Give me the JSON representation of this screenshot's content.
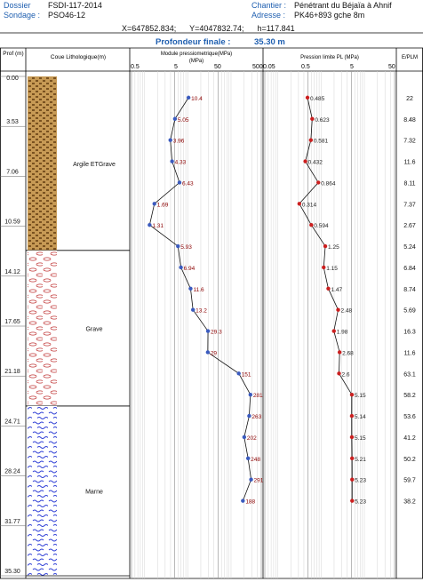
{
  "header": {
    "dossier_label": "Dossier",
    "dossier_value": "FSDI-117-2014",
    "sondage_label": "Sondage :",
    "sondage_value": "PSO46-12",
    "chantier_label": "Chantier :",
    "chantier_value": "Pénétrant  du Béjaïa à Ahnif",
    "adresse_label": "Adresse :",
    "adresse_value": "PK46+893 gche 8m",
    "coords": "X=647852.834;      Y=4047832.74;      h=117.841",
    "profondeur_label": "Profondeur finale :",
    "profondeur_value": "35.30 m"
  },
  "columns": {
    "depth": "Prof\n(m)",
    "litho": "Coue Lithologique(m)",
    "modulus": "Module pressiometrique(MPa)",
    "modulus_unit": "(MPa)",
    "pressure": "Pression limite PL (MPa)",
    "ratio": "E/PLM"
  },
  "axes": {
    "modulus_ticks": [
      "0.5",
      "5",
      "50",
      "500"
    ],
    "pressure_ticks": [
      "0.05",
      "0.5",
      "5",
      "50"
    ]
  },
  "depth_ticks": [
    "0.00",
    "3.53",
    "7.06",
    "10.59",
    "14.12",
    "17.65",
    "21.18",
    "24.71",
    "28.24",
    "31.77",
    "35.30"
  ],
  "layers": [
    {
      "name": "Argile ETGrave",
      "from": 0,
      "to": 12.3
    },
    {
      "name": "Grave",
      "from": 12.3,
      "to": 23.3
    },
    {
      "name": "Marne",
      "from": 23.3,
      "to": 35.3
    }
  ],
  "chart_data": {
    "type": "line",
    "depth_range": [
      0,
      35.3
    ],
    "modulus_axis": {
      "scale": "log",
      "range": [
        0.5,
        500
      ]
    },
    "pressure_axis": {
      "scale": "log",
      "range": [
        0.05,
        50
      ]
    },
    "series": [
      {
        "name": "Module pressiometrique(MPa)",
        "color": "#3b5bbf",
        "label_color": "#8b0000",
        "points": [
          {
            "depth": 1.5,
            "value": 10.4,
            "label": "10.4"
          },
          {
            "depth": 3.0,
            "value": 5.05,
            "label": "5.05"
          },
          {
            "depth": 4.5,
            "value": 3.96,
            "label": "3.96"
          },
          {
            "depth": 6.0,
            "value": 4.33,
            "label": "4.33"
          },
          {
            "depth": 7.5,
            "value": 6.43,
            "label": "6.43"
          },
          {
            "depth": 9.0,
            "value": 1.69,
            "label": "1.69"
          },
          {
            "depth": 10.5,
            "value": 1.31,
            "label": "1.31"
          },
          {
            "depth": 12.0,
            "value": 5.93,
            "label": "5.93"
          },
          {
            "depth": 13.5,
            "value": 6.94,
            "label": "6.94"
          },
          {
            "depth": 15.0,
            "value": 11.6,
            "label": "11.6"
          },
          {
            "depth": 16.5,
            "value": 13.2,
            "label": "13.2"
          },
          {
            "depth": 18.0,
            "value": 29.3,
            "label": "29.3"
          },
          {
            "depth": 19.5,
            "value": 29,
            "label": "29"
          },
          {
            "depth": 21.0,
            "value": 151,
            "label": "151"
          },
          {
            "depth": 22.5,
            "value": 281,
            "label": "281"
          },
          {
            "depth": 24.0,
            "value": 263,
            "label": "263"
          },
          {
            "depth": 25.5,
            "value": 202,
            "label": "202"
          },
          {
            "depth": 27.0,
            "value": 248,
            "label": "248"
          },
          {
            "depth": 28.5,
            "value": 291,
            "label": "291"
          },
          {
            "depth": 30.0,
            "value": 188,
            "label": "188"
          }
        ]
      },
      {
        "name": "Pression limite PL (MPa)",
        "color": "#cc1f1f",
        "label_color": "#222222",
        "points": [
          {
            "depth": 1.5,
            "value": 0.485,
            "label": "0.485"
          },
          {
            "depth": 3.0,
            "value": 0.623,
            "label": "0.623"
          },
          {
            "depth": 4.5,
            "value": 0.581,
            "label": "0.581"
          },
          {
            "depth": 6.0,
            "value": 0.432,
            "label": "0.432"
          },
          {
            "depth": 7.5,
            "value": 0.864,
            "label": "0.864"
          },
          {
            "depth": 9.0,
            "value": 0.314,
            "label": "0.314"
          },
          {
            "depth": 10.5,
            "value": 0.594,
            "label": "0.594"
          },
          {
            "depth": 12.0,
            "value": 1.25,
            "label": "1.25"
          },
          {
            "depth": 13.5,
            "value": 1.15,
            "label": "1.15"
          },
          {
            "depth": 15.0,
            "value": 1.47,
            "label": "1.47"
          },
          {
            "depth": 16.5,
            "value": 2.48,
            "label": "2.48"
          },
          {
            "depth": 18.0,
            "value": 1.98,
            "label": "1.98"
          },
          {
            "depth": 19.5,
            "value": 2.68,
            "label": "2.68"
          },
          {
            "depth": 21.0,
            "value": 2.6,
            "label": "2.6"
          },
          {
            "depth": 22.5,
            "value": 5.15,
            "label": "5.15"
          },
          {
            "depth": 24.0,
            "value": 5.14,
            "label": "5.14"
          },
          {
            "depth": 25.5,
            "value": 5.15,
            "label": "5.15"
          },
          {
            "depth": 27.0,
            "value": 5.21,
            "label": "5.21"
          },
          {
            "depth": 28.5,
            "value": 5.23,
            "label": "5.23"
          },
          {
            "depth": 30.0,
            "value": 5.23,
            "label": "5.23"
          }
        ]
      },
      {
        "name": "E/PLM",
        "values": [
          "22",
          "8.48",
          "7.32",
          "11.6",
          "8.11",
          "7.37",
          "2.67",
          "5.24",
          "6.84",
          "8.74",
          "5.69",
          "16.3",
          "11.6",
          "63.1",
          "58.2",
          "53.6",
          "41.2",
          "50.2",
          "59.7",
          "38.2"
        ]
      }
    ]
  }
}
